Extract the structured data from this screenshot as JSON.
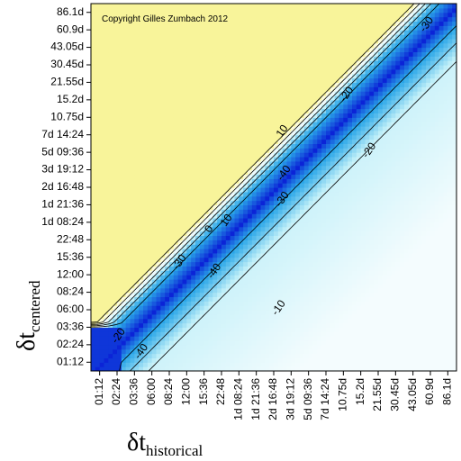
{
  "chart_data": {
    "type": "heatmap",
    "title": "",
    "copyright": "Copyright Gilles Zumbach 2012",
    "xlabel": {
      "symbol": "δt",
      "subscript": "historical"
    },
    "ylabel": {
      "symbol": "δt",
      "subscript": "centered"
    },
    "x_ticks": [
      "01:12",
      "02:24",
      "03:36",
      "06:00",
      "08:24",
      "12:00",
      "15:36",
      "22:48",
      "1d 08:24",
      "1d 21:36",
      "2d 16:48",
      "3d 19:12",
      "5d 09:36",
      "7d 14:24",
      "10.75d",
      "15.2d",
      "21.55d",
      "30.45d",
      "43.05d",
      "60.9d",
      "86.1d"
    ],
    "y_ticks": [
      "01:12",
      "02:24",
      "03:36",
      "06:00",
      "08:24",
      "12:00",
      "15:36",
      "22:48",
      "1d 08:24",
      "1d 21:36",
      "2d 16:48",
      "3d 19:12",
      "5d 09:36",
      "7d 14:24",
      "10.75d",
      "15.2d",
      "21.55d",
      "30.45d",
      "43.05d",
      "60.9d",
      "86.1d"
    ],
    "contour_levels": [
      -40,
      -30,
      -20,
      -10,
      0,
      10
    ],
    "contour_labels": [
      {
        "text": "10",
        "x": 10.5,
        "y": 13.2
      },
      {
        "text": "-20",
        "x": 14.2,
        "y": 15.3
      },
      {
        "text": "-30",
        "x": 18.8,
        "y": 19.3
      },
      {
        "text": "-20",
        "x": 15.5,
        "y": 12.1
      },
      {
        "text": "-40",
        "x": 10.6,
        "y": 10.8
      },
      {
        "text": "-30",
        "x": 10.5,
        "y": 9.3
      },
      {
        "text": "10",
        "x": 7.3,
        "y": 8.1
      },
      {
        "text": "0",
        "x": 6.3,
        "y": 7.6
      },
      {
        "text": "-30",
        "x": 4.6,
        "y": 5.7
      },
      {
        "text": "-40",
        "x": 6.6,
        "y": 5.2
      },
      {
        "text": "-10",
        "x": 10.3,
        "y": 3.1
      },
      {
        "text": "-20",
        "x": 1.1,
        "y": 1.5
      },
      {
        "text": "-40",
        "x": 2.4,
        "y": 0.6
      }
    ],
    "colorscale": {
      "positive": "#f8f49a",
      "zero": "#ffffff",
      "low_negative": "#bfeff8",
      "mid_negative": "#2aa6e8",
      "strong_negative": "#0a1fd6"
    }
  }
}
